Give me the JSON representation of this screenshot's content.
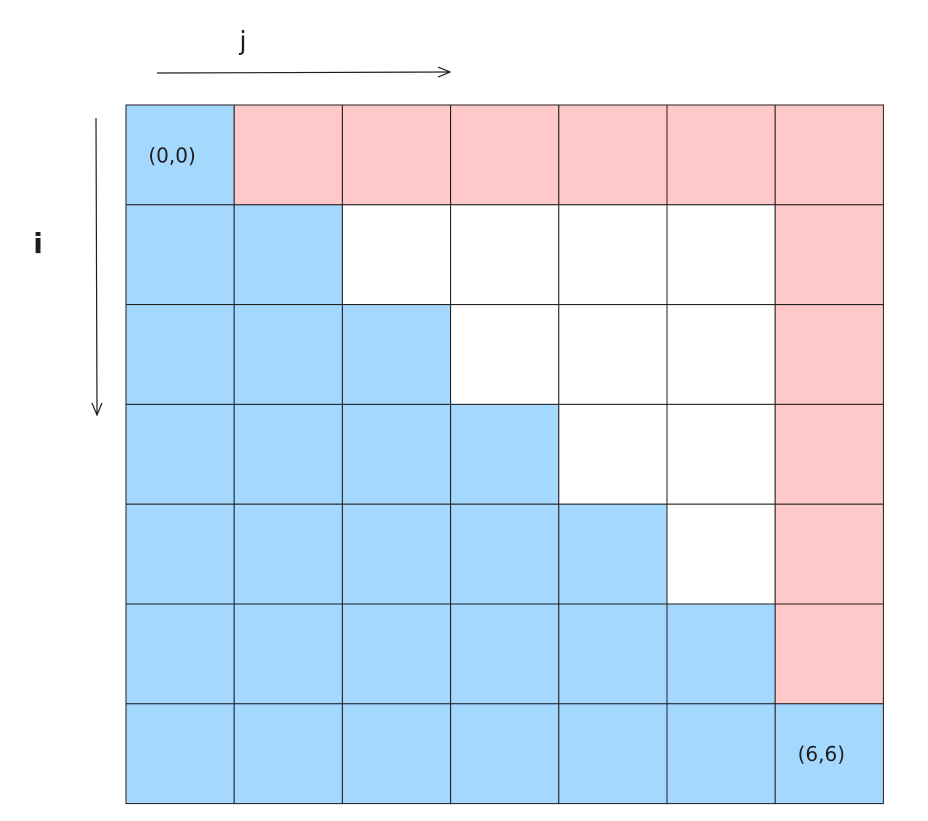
{
  "axes": {
    "column_label": "j",
    "row_label": "i"
  },
  "colors": {
    "blue": "#a5d8ff",
    "pink": "#ffc9c9",
    "white": "#ffffff"
  },
  "grid": {
    "rows": [
      [
        {
          "fill": "blue",
          "label": "(0,0)"
        },
        {
          "fill": "pink"
        },
        {
          "fill": "pink"
        },
        {
          "fill": "pink"
        },
        {
          "fill": "pink"
        },
        {
          "fill": "pink"
        },
        {
          "fill": "pink"
        }
      ],
      [
        {
          "fill": "blue"
        },
        {
          "fill": "blue"
        },
        {
          "fill": "white"
        },
        {
          "fill": "white"
        },
        {
          "fill": "white"
        },
        {
          "fill": "white"
        },
        {
          "fill": "pink"
        }
      ],
      [
        {
          "fill": "blue"
        },
        {
          "fill": "blue"
        },
        {
          "fill": "blue"
        },
        {
          "fill": "white"
        },
        {
          "fill": "white"
        },
        {
          "fill": "white"
        },
        {
          "fill": "pink"
        }
      ],
      [
        {
          "fill": "blue"
        },
        {
          "fill": "blue"
        },
        {
          "fill": "blue"
        },
        {
          "fill": "blue"
        },
        {
          "fill": "white"
        },
        {
          "fill": "white"
        },
        {
          "fill": "pink"
        }
      ],
      [
        {
          "fill": "blue"
        },
        {
          "fill": "blue"
        },
        {
          "fill": "blue"
        },
        {
          "fill": "blue"
        },
        {
          "fill": "blue"
        },
        {
          "fill": "white"
        },
        {
          "fill": "pink"
        }
      ],
      [
        {
          "fill": "blue"
        },
        {
          "fill": "blue"
        },
        {
          "fill": "blue"
        },
        {
          "fill": "blue"
        },
        {
          "fill": "blue"
        },
        {
          "fill": "blue"
        },
        {
          "fill": "pink"
        }
      ],
      [
        {
          "fill": "blue"
        },
        {
          "fill": "blue"
        },
        {
          "fill": "blue"
        },
        {
          "fill": "blue"
        },
        {
          "fill": "blue"
        },
        {
          "fill": "blue"
        },
        {
          "fill": "blue",
          "label": "(6,6)"
        }
      ]
    ]
  }
}
